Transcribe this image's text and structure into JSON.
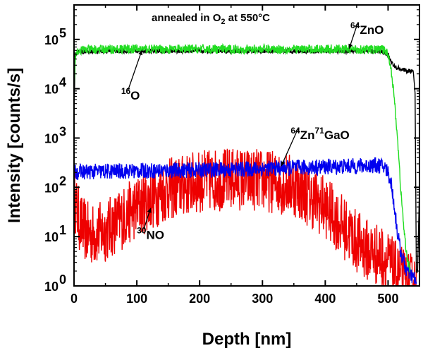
{
  "chart_data": {
    "type": "line",
    "title": "annealed in O2 at 550°C",
    "xlabel": "Depth [nm]",
    "ylabel": "Intensity [counts/s]",
    "xlim": [
      0,
      550
    ],
    "ylim": [
      1,
      500000
    ],
    "yscale": "log",
    "x_ticks": [
      0,
      100,
      200,
      300,
      400,
      500
    ],
    "x_tick_labels": [
      "0",
      "100",
      "200",
      "300",
      "400",
      "500"
    ],
    "y_ticks": [
      1,
      10,
      100,
      1000,
      10000,
      100000
    ],
    "y_tick_base": "10",
    "y_tick_exponents": [
      "0",
      "1",
      "2",
      "3",
      "4",
      "5"
    ],
    "series": [
      {
        "name": "64ZnO",
        "color": "#22dd22",
        "x": [
          0,
          2,
          5,
          10,
          20,
          50,
          100,
          150,
          200,
          250,
          300,
          350,
          400,
          450,
          490,
          495,
          500,
          505,
          510,
          515,
          520,
          525,
          530,
          535
        ],
        "values": [
          10000,
          50000,
          58000,
          60000,
          62000,
          63000,
          64000,
          63000,
          64000,
          63000,
          64000,
          63000,
          64000,
          63000,
          62000,
          60000,
          50000,
          25000,
          6000,
          1000,
          100,
          15,
          4,
          2
        ],
        "noise": 0.04
      },
      {
        "name": "16O",
        "color": "#000000",
        "x": [
          0,
          2,
          5,
          10,
          50,
          100,
          200,
          300,
          400,
          490,
          500,
          505,
          510,
          520,
          530,
          540,
          543,
          545,
          547,
          550
        ],
        "values": [
          3000,
          50000,
          55000,
          57000,
          58000,
          58000,
          58000,
          58000,
          58000,
          57000,
          50000,
          35000,
          28000,
          25000,
          23000,
          22000,
          8000,
          2,
          2,
          100
        ],
        "noise": 0.02
      },
      {
        "name": "64Zn71GaO",
        "color": "#0000ee",
        "x": [
          0,
          5,
          50,
          100,
          150,
          200,
          250,
          300,
          350,
          400,
          450,
          480,
          490,
          495,
          500,
          505,
          510,
          515,
          520,
          525,
          530,
          540,
          545
        ],
        "values": [
          200,
          205,
          210,
          215,
          220,
          225,
          230,
          240,
          250,
          260,
          270,
          280,
          270,
          250,
          200,
          120,
          40,
          12,
          5,
          3,
          2,
          1.5,
          1.2
        ],
        "noise": 0.07
      },
      {
        "name": "30NO",
        "color": "#ee0000",
        "x": [
          0,
          3,
          10,
          20,
          30,
          50,
          100,
          150,
          200,
          250,
          300,
          350,
          400,
          430,
          450,
          470,
          490,
          500,
          510,
          520,
          530,
          540,
          545
        ],
        "values": [
          80,
          40,
          18,
          12,
          11,
          13,
          40,
          90,
          130,
          150,
          140,
          110,
          40,
          15,
          8,
          5,
          4,
          3,
          2,
          1.5,
          1.2,
          1,
          1
        ],
        "noise": 0.28
      }
    ],
    "annotations": [
      {
        "label": "16O",
        "base": "O",
        "sup": "16",
        "x": 75,
        "y": 6000,
        "arrow_to": [
          108,
          60000
        ]
      },
      {
        "label": "64ZnO",
        "base": "ZnO",
        "sup": "64",
        "x": 440,
        "y": 130000,
        "arrow_to": [
          438,
          65000
        ]
      },
      {
        "label": "64Zn71GaO",
        "base1": "Zn",
        "sup1": "64",
        "base2": "GaO",
        "sup2": "71",
        "x": 345,
        "y": 950,
        "arrow_to": [
          330,
          270
        ]
      },
      {
        "label": "30NO",
        "base": "NO",
        "sup": "30",
        "x": 100,
        "y": 9,
        "arrow_to": [
          122,
          38
        ]
      }
    ]
  }
}
